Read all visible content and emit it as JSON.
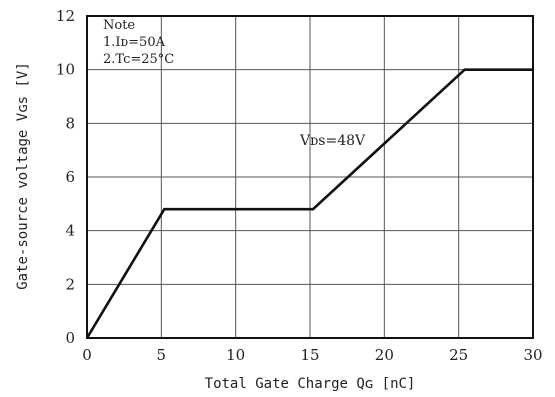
{
  "chart_data": {
    "type": "line",
    "xlabel": "Total Gate Charge Qɢ [nC]",
    "ylabel": "Gate-source voltage Vɢs [V]",
    "xlim": [
      0,
      30
    ],
    "ylim": [
      0,
      12
    ],
    "xticks": [
      0,
      5,
      10,
      15,
      20,
      25,
      30
    ],
    "yticks": [
      0,
      2,
      4,
      6,
      8,
      10,
      12
    ],
    "x_tick_labels": [
      "0",
      "5",
      "10",
      "15",
      "20",
      "25",
      "30"
    ],
    "y_tick_labels": [
      "0",
      "2",
      "4",
      "6",
      "8",
      "10",
      "12"
    ],
    "grid": true,
    "series": [
      {
        "x": [
          0,
          5.2,
          15.2,
          25.4,
          30
        ],
        "y": [
          0,
          4.8,
          4.8,
          10,
          10
        ]
      }
    ],
    "note": {
      "title": "Note",
      "line1": "1.Iᴅ=50A",
      "line2": "2.Tc=25°C"
    },
    "annotation": "Vᴅs=48V",
    "colors": {
      "line": "#111111",
      "grid": "#555555",
      "frame": "#111111"
    }
  }
}
